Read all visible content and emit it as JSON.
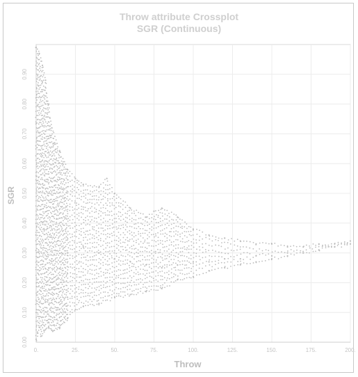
{
  "chart_data": {
    "type": "scatter",
    "title": "Throw attribute Crossplot",
    "subtitle": "SGR (Continuous)",
    "xlabel": "Throw",
    "ylabel": "SGR",
    "xlim": [
      0,
      200
    ],
    "ylim": [
      0,
      1.0
    ],
    "x_ticks": [
      "0.",
      "25.",
      "50.",
      "75.",
      "100.",
      "125.",
      "150.",
      "175.",
      "200."
    ],
    "y_ticks": [
      "0.00",
      "0.10",
      "0.20",
      "0.30",
      "0.40",
      "0.50",
      "0.60",
      "0.70",
      "0.80",
      "0.90"
    ],
    "grid": true,
    "marker_color": "#bdbdbd",
    "series": [
      {
        "values_description_points": [
          [
            0,
            0.01
          ],
          [
            1,
            0.03
          ],
          [
            2,
            0.05
          ],
          [
            3,
            0.02
          ],
          [
            5,
            0.04
          ],
          [
            8,
            0.05
          ],
          [
            10,
            0.04
          ],
          [
            15,
            0.05
          ],
          [
            20,
            0.08
          ],
          [
            25,
            0.11
          ],
          [
            30,
            0.12
          ],
          [
            40,
            0.13
          ],
          [
            50,
            0.15
          ],
          [
            60,
            0.16
          ],
          [
            70,
            0.17
          ],
          [
            80,
            0.18
          ],
          [
            90,
            0.21
          ],
          [
            100,
            0.22
          ],
          [
            110,
            0.24
          ],
          [
            120,
            0.25
          ],
          [
            130,
            0.26
          ],
          [
            140,
            0.27
          ],
          [
            150,
            0.28
          ],
          [
            160,
            0.29
          ],
          [
            170,
            0.3
          ],
          [
            180,
            0.31
          ],
          [
            190,
            0.32
          ],
          [
            200,
            0.33
          ],
          [
            0,
            0.99
          ],
          [
            2,
            0.97
          ],
          [
            4,
            0.93
          ],
          [
            6,
            0.88
          ],
          [
            8,
            0.8
          ],
          [
            10,
            0.72
          ],
          [
            15,
            0.64
          ],
          [
            20,
            0.58
          ],
          [
            25,
            0.55
          ],
          [
            30,
            0.53
          ],
          [
            40,
            0.52
          ],
          [
            45,
            0.55
          ],
          [
            50,
            0.5
          ],
          [
            60,
            0.45
          ],
          [
            70,
            0.42
          ],
          [
            75,
            0.44
          ],
          [
            80,
            0.45
          ],
          [
            90,
            0.42
          ],
          [
            100,
            0.38
          ],
          [
            110,
            0.36
          ],
          [
            120,
            0.35
          ],
          [
            130,
            0.34
          ],
          [
            140,
            0.33
          ],
          [
            150,
            0.33
          ],
          [
            160,
            0.32
          ],
          [
            170,
            0.32
          ],
          [
            180,
            0.33
          ],
          [
            190,
            0.33
          ],
          [
            200,
            0.34
          ],
          [
            5,
            0.3
          ],
          [
            10,
            0.28
          ],
          [
            20,
            0.3
          ],
          [
            30,
            0.32
          ],
          [
            40,
            0.3
          ],
          [
            50,
            0.28
          ],
          [
            60,
            0.27
          ],
          [
            70,
            0.26
          ],
          [
            80,
            0.25
          ],
          [
            90,
            0.26
          ],
          [
            100,
            0.27
          ],
          [
            110,
            0.27
          ],
          [
            120,
            0.28
          ],
          [
            130,
            0.28
          ],
          [
            140,
            0.29
          ],
          [
            150,
            0.29
          ],
          [
            160,
            0.3
          ],
          [
            170,
            0.3
          ],
          [
            180,
            0.31
          ],
          [
            190,
            0.32
          ]
        ]
      }
    ]
  }
}
